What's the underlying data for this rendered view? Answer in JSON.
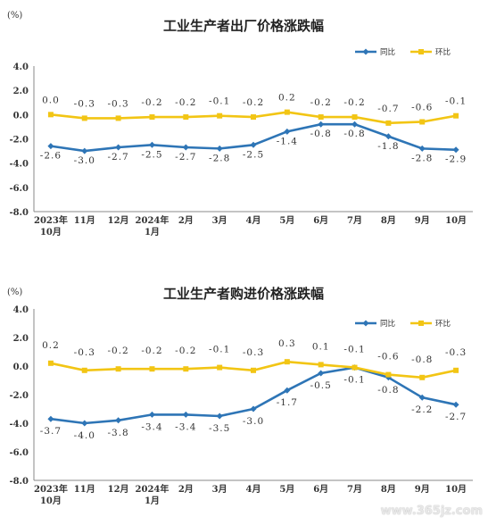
{
  "chart_data": [
    {
      "type": "line",
      "title": "工业生产者出厂价格涨跌幅",
      "unit_label": "(%)",
      "ylim": [
        -8.0,
        4.0
      ],
      "yticks": [
        "4.0",
        "2.0",
        "0.0",
        "-2.0",
        "-4.0",
        "-6.0",
        "-8.0"
      ],
      "categories": [
        "2023年 10月",
        "11月",
        "12月",
        "2024年 1月",
        "2月",
        "3月",
        "4月",
        "5月",
        "6月",
        "7月",
        "8月",
        "9月",
        "10月"
      ],
      "legend_position": "top-right",
      "series": [
        {
          "name": "同比",
          "color": "#2e75b6",
          "values": [
            -2.6,
            -3.0,
            -2.7,
            -2.5,
            -2.7,
            -2.8,
            -2.5,
            -1.4,
            -0.8,
            -0.8,
            -1.8,
            -2.8,
            -2.9
          ],
          "labels": [
            "-2.6",
            "-3.0",
            "-2.7",
            "-2.5",
            "-2.7",
            "-2.8",
            "-2.5",
            "-1.4",
            "-0.8",
            "-0.8",
            "-1.8",
            "-2.8",
            "-2.9"
          ]
        },
        {
          "name": "环比",
          "color": "#f2c514",
          "values": [
            0.0,
            -0.3,
            -0.3,
            -0.2,
            -0.2,
            -0.1,
            -0.2,
            0.2,
            -0.2,
            -0.2,
            -0.7,
            -0.6,
            -0.1
          ],
          "labels": [
            "0.0",
            "-0.3",
            "-0.3",
            "-0.2",
            "-0.2",
            "-0.1",
            "-0.2",
            "0.2",
            "-0.2",
            "-0.2",
            "-0.7",
            "-0.6",
            "-0.1"
          ]
        }
      ]
    },
    {
      "type": "line",
      "title": "工业生产者购进价格涨跌幅",
      "unit_label": "(%)",
      "ylim": [
        -8.0,
        4.0
      ],
      "yticks": [
        "4.0",
        "2.0",
        "0.0",
        "-2.0",
        "-4.0",
        "-6.0",
        "-8.0"
      ],
      "categories": [
        "2023年 10月",
        "11月",
        "12月",
        "2024年 1月",
        "2月",
        "3月",
        "4月",
        "5月",
        "6月",
        "7月",
        "8月",
        "9月",
        "10月"
      ],
      "legend_position": "top-right",
      "series": [
        {
          "name": "同比",
          "color": "#2e75b6",
          "values": [
            -3.7,
            -4.0,
            -3.8,
            -3.4,
            -3.4,
            -3.5,
            -3.0,
            -1.7,
            -0.5,
            -0.1,
            -0.8,
            -2.2,
            -2.7
          ],
          "labels": [
            "-3.7",
            "-4.0",
            "-3.8",
            "-3.4",
            "-3.4",
            "-3.5",
            "-3.0",
            "-1.7",
            "-0.5",
            "-0.1",
            "-0.8",
            "-2.2",
            "-2.7"
          ]
        },
        {
          "name": "环比",
          "color": "#f2c514",
          "values": [
            0.2,
            -0.3,
            -0.2,
            -0.2,
            -0.2,
            -0.1,
            -0.3,
            0.3,
            0.1,
            -0.1,
            -0.6,
            -0.8,
            -0.3
          ],
          "labels": [
            "0.2",
            "-0.3",
            "-0.2",
            "-0.2",
            "-0.2",
            "-0.1",
            "-0.3",
            "0.3",
            "0.1",
            "-0.1",
            "-0.6",
            "-0.8",
            "-0.3"
          ]
        }
      ]
    }
  ],
  "watermark": "www.365jz.com"
}
